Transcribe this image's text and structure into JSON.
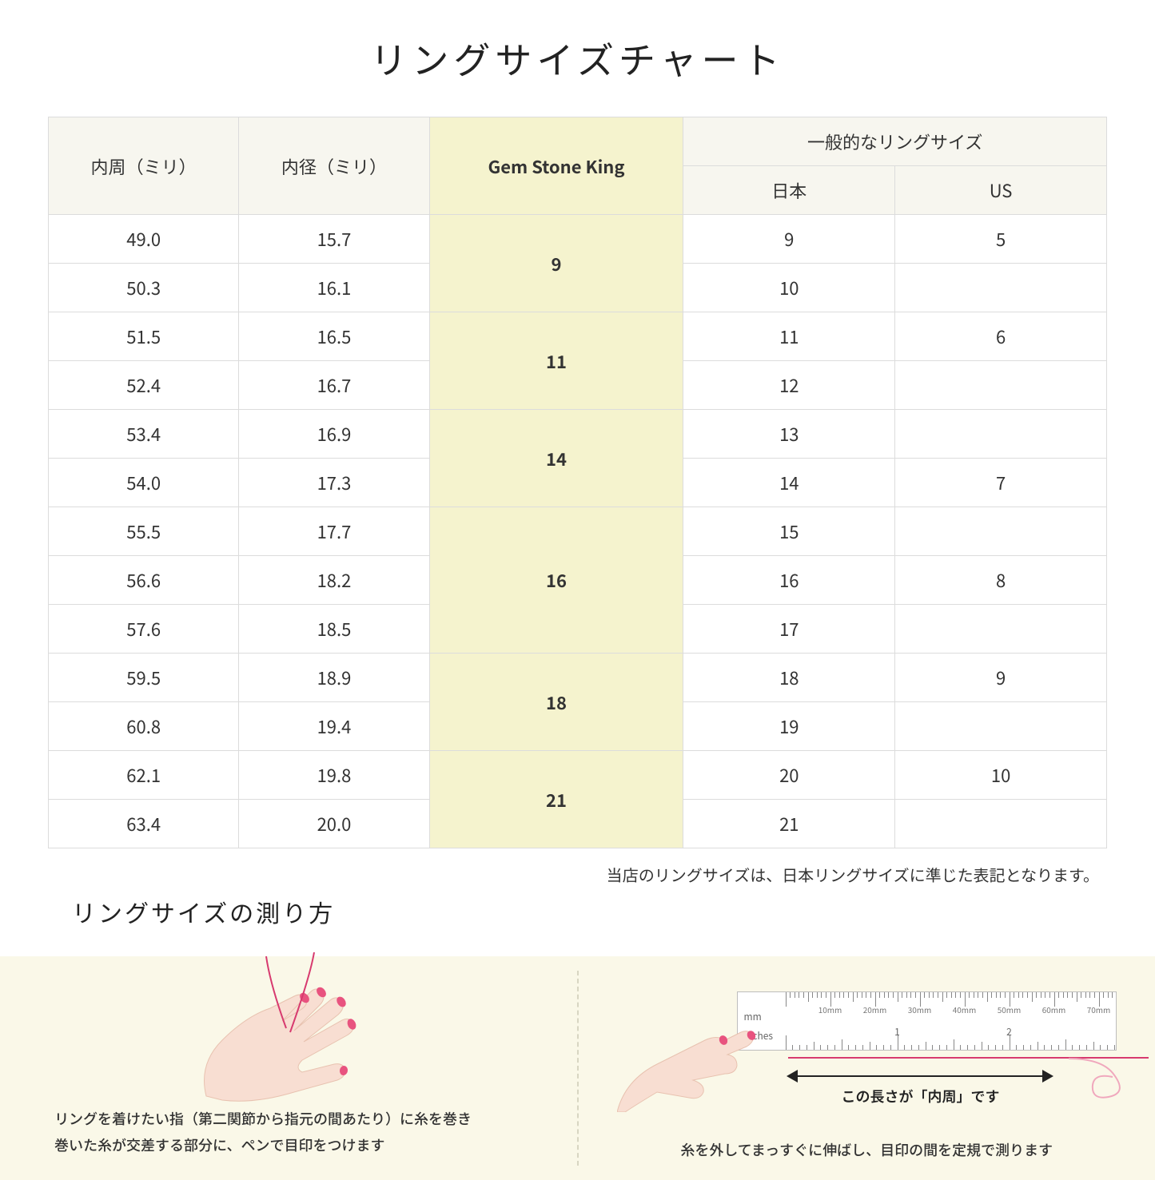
{
  "title": "リングサイズチャート",
  "table": {
    "headers": {
      "circumference": "内周（ミリ）",
      "diameter": "内径（ミリ）",
      "gsk": "Gem Stone King",
      "general_group": "一般的なリングサイズ",
      "japan": "日本",
      "us": "US"
    },
    "groups": [
      {
        "gsk": "9",
        "rows": [
          {
            "c": "49.0",
            "d": "15.7",
            "jp": "9",
            "us": "5"
          },
          {
            "c": "50.3",
            "d": "16.1",
            "jp": "10",
            "us": ""
          }
        ]
      },
      {
        "gsk": "11",
        "rows": [
          {
            "c": "51.5",
            "d": "16.5",
            "jp": "11",
            "us": "6"
          },
          {
            "c": "52.4",
            "d": "16.7",
            "jp": "12",
            "us": ""
          }
        ]
      },
      {
        "gsk": "14",
        "rows": [
          {
            "c": "53.4",
            "d": "16.9",
            "jp": "13",
            "us": ""
          },
          {
            "c": "54.0",
            "d": "17.3",
            "jp": "14",
            "us": "7"
          }
        ]
      },
      {
        "gsk": "16",
        "rows": [
          {
            "c": "55.5",
            "d": "17.7",
            "jp": "15",
            "us": ""
          },
          {
            "c": "56.6",
            "d": "18.2",
            "jp": "16",
            "us": "8"
          },
          {
            "c": "57.6",
            "d": "18.5",
            "jp": "17",
            "us": ""
          }
        ]
      },
      {
        "gsk": "18",
        "rows": [
          {
            "c": "59.5",
            "d": "18.9",
            "jp": "18",
            "us": "9"
          },
          {
            "c": "60.8",
            "d": "19.4",
            "jp": "19",
            "us": ""
          }
        ]
      },
      {
        "gsk": "21",
        "rows": [
          {
            "c": "62.1",
            "d": "19.8",
            "jp": "20",
            "us": "10"
          },
          {
            "c": "63.4",
            "d": "20.0",
            "jp": "21",
            "us": ""
          }
        ]
      }
    ],
    "header_bg": "#f7f6ef",
    "gsk_bg": "#f5f3ce",
    "border_color": "#dcdcdc"
  },
  "note": "当店のリングサイズは、日本リングサイズに準じた表記となります。",
  "howto": {
    "title": "リングサイズの測り方",
    "left_text": "リングを着けたい指（第二関節から指元の間あたり）に糸を巻き\n巻いた糸が交差する部分に、ペンで目印をつけます",
    "right_text": "糸を外してまっすぐに伸ばし、目印の間を定規で測ります",
    "measure_label": "この長さが「内周」です",
    "ruler": {
      "mm_label": "mm",
      "in_label": "Inches",
      "mm_marks": [
        "10mm",
        "20mm",
        "30mm",
        "40mm",
        "50mm",
        "60mm",
        "70mm"
      ],
      "in_marks": [
        "1",
        "2"
      ]
    },
    "bg": "#faf8e8",
    "skin_color": "#f8ded2",
    "nail_color": "#e8537f",
    "thread_color": "#d73a6f"
  }
}
